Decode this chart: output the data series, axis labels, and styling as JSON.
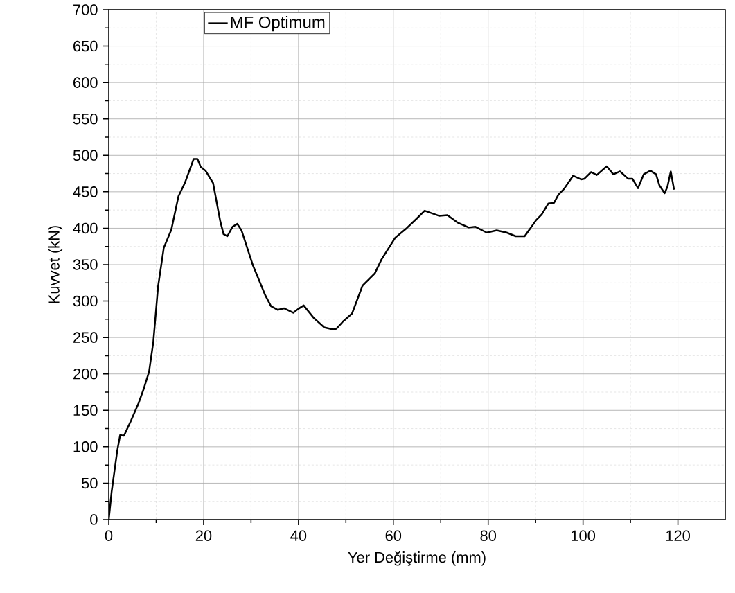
{
  "chart_data": {
    "type": "line",
    "xlabel": "Yer Değiştirme (mm)",
    "ylabel": "Kuvvet (kN)",
    "xlim": [
      0,
      130
    ],
    "ylim": [
      0,
      700
    ],
    "xticks": [
      0,
      20,
      40,
      60,
      80,
      100,
      120
    ],
    "yticks": [
      0,
      50,
      100,
      150,
      200,
      250,
      300,
      350,
      400,
      450,
      500,
      550,
      600,
      650,
      700
    ],
    "grid": true,
    "legend": "top left",
    "marker": "none",
    "line_style": "solid",
    "series": [
      {
        "name": "MF Optimum",
        "color": "#000000",
        "x": [
          0,
          0.6,
          1.8,
          2.4,
          3.2,
          4.7,
          6.3,
          7.4,
          8.5,
          9.4,
          10.4,
          11.6,
          13.2,
          14.7,
          16.1,
          17.9,
          18.7,
          19.4,
          20.4,
          22.0,
          23.5,
          24.2,
          25.0,
          26.1,
          27.1,
          28.0,
          30.4,
          33.0,
          34.2,
          35.6,
          37.0,
          38.9,
          39.9,
          41.1,
          43.2,
          45.4,
          47.3,
          48.0,
          49.4,
          51.3,
          53.5,
          56.1,
          57.5,
          60.4,
          62.8,
          64.9,
          66.6,
          69.7,
          71.4,
          73.5,
          75.9,
          77.3,
          79.7,
          81.8,
          83.9,
          85.8,
          87.7,
          90.1,
          91.3,
          92.7,
          93.9,
          94.8,
          96.0,
          97.9,
          99.6,
          100.3,
          101.7,
          102.9,
          105.0,
          106.4,
          107.8,
          109.5,
          110.4,
          111.6,
          112.8,
          114.2,
          115.4,
          116.1,
          117.2,
          117.8,
          118.5,
          119.2
        ],
        "values": [
          0,
          38,
          95,
          116,
          115,
          136,
          160,
          180,
          203,
          244,
          320,
          373,
          398,
          444,
          463,
          495,
          495,
          484,
          479,
          462,
          410,
          392,
          389,
          402,
          406,
          397,
          349,
          308,
          293,
          288,
          290,
          284,
          289,
          294,
          277,
          264,
          261,
          262,
          272,
          283,
          321,
          338,
          357,
          387,
          400,
          413,
          424,
          417,
          418,
          408,
          401,
          402,
          394,
          397,
          394,
          389,
          389,
          411,
          419,
          434,
          435,
          446,
          454,
          472,
          467,
          468,
          477,
          473,
          485,
          474,
          478,
          468,
          468,
          455,
          474,
          479,
          474,
          459,
          448,
          457,
          478,
          453
        ]
      }
    ]
  }
}
